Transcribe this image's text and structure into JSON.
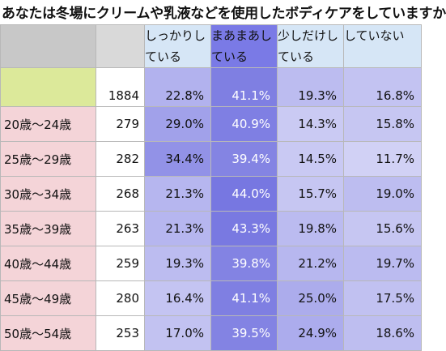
{
  "title": "あなたは冬場にクリームや乳液などを使用したボディケアをしていますか",
  "chart_data": {
    "type": "table",
    "columns": [
      "しっかりしている",
      "まあまあしている",
      "少しだけしている",
      "していない"
    ],
    "column_lines": [
      [
        "しっかりし",
        "ている"
      ],
      [
        "まあまあし",
        "ている"
      ],
      [
        "少しだけし",
        "ている"
      ],
      [
        "していない",
        ""
      ]
    ],
    "column_colors": [
      "#d6e6f6",
      "#7a7ae6",
      "#d6e6f6",
      "#d6e6f6"
    ],
    "rows": [
      {
        "label": "",
        "n": "1884",
        "values": [
          "22.8%",
          "41.1%",
          "19.3%",
          "16.8%"
        ]
      },
      {
        "label": "20歳～24歳",
        "n": "279",
        "values": [
          "29.0%",
          "40.9%",
          "14.3%",
          "15.8%"
        ]
      },
      {
        "label": "25歳～29歳",
        "n": "282",
        "values": [
          "34.4%",
          "39.4%",
          "14.5%",
          "11.7%"
        ]
      },
      {
        "label": "30歳～34歳",
        "n": "268",
        "values": [
          "21.3%",
          "44.0%",
          "15.7%",
          "19.0%"
        ]
      },
      {
        "label": "35歳～39歳",
        "n": "263",
        "values": [
          "21.3%",
          "43.3%",
          "19.8%",
          "15.6%"
        ]
      },
      {
        "label": "40歳～44歳",
        "n": "259",
        "values": [
          "19.3%",
          "39.8%",
          "21.2%",
          "19.7%"
        ]
      },
      {
        "label": "45歳～49歳",
        "n": "280",
        "values": [
          "16.4%",
          "41.1%",
          "25.0%",
          "17.5%"
        ]
      },
      {
        "label": "50歳～54歳",
        "n": "253",
        "values": [
          "17.0%",
          "39.5%",
          "24.9%",
          "18.6%"
        ]
      }
    ],
    "shading": {
      "low": "#f2f2fc",
      "high": "#7474e0",
      "max_value": 45
    }
  }
}
